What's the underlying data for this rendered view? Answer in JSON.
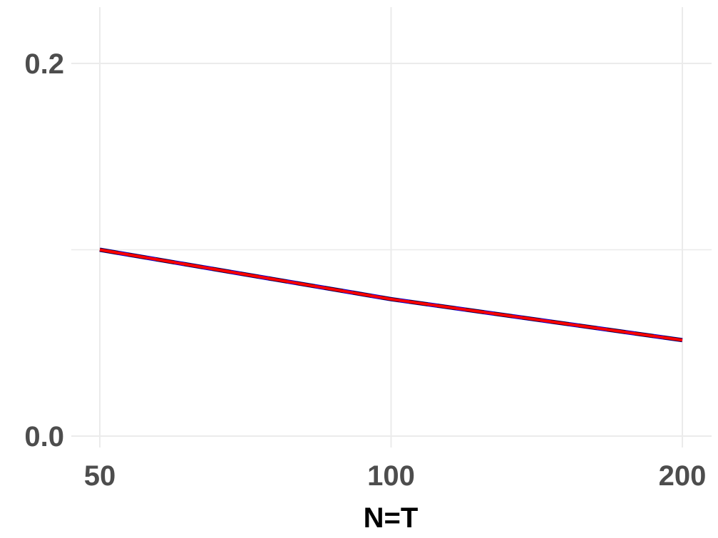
{
  "chart_data": {
    "type": "line",
    "x_scale": "log",
    "x": [
      50,
      100,
      200
    ],
    "xticks": [
      "50",
      "100",
      "200"
    ],
    "xlabel": "N=T",
    "yticks": [
      "0.0",
      "0.2"
    ],
    "ytick_values": [
      0.0,
      0.2
    ],
    "ylabel": "",
    "ylim": [
      -0.01,
      0.23
    ],
    "grid": true,
    "legend": "none",
    "series": [
      {
        "color": "#0000cc",
        "dash": "solid",
        "values": [
          0.1,
          0.0735,
          0.0515
        ]
      },
      {
        "color": "#000000",
        "dash": "long-dash",
        "values": [
          0.1,
          0.0735,
          0.0515
        ]
      },
      {
        "color": "#ff0000",
        "dash": "solid",
        "values": [
          0.1,
          0.0735,
          0.0515
        ]
      }
    ]
  }
}
